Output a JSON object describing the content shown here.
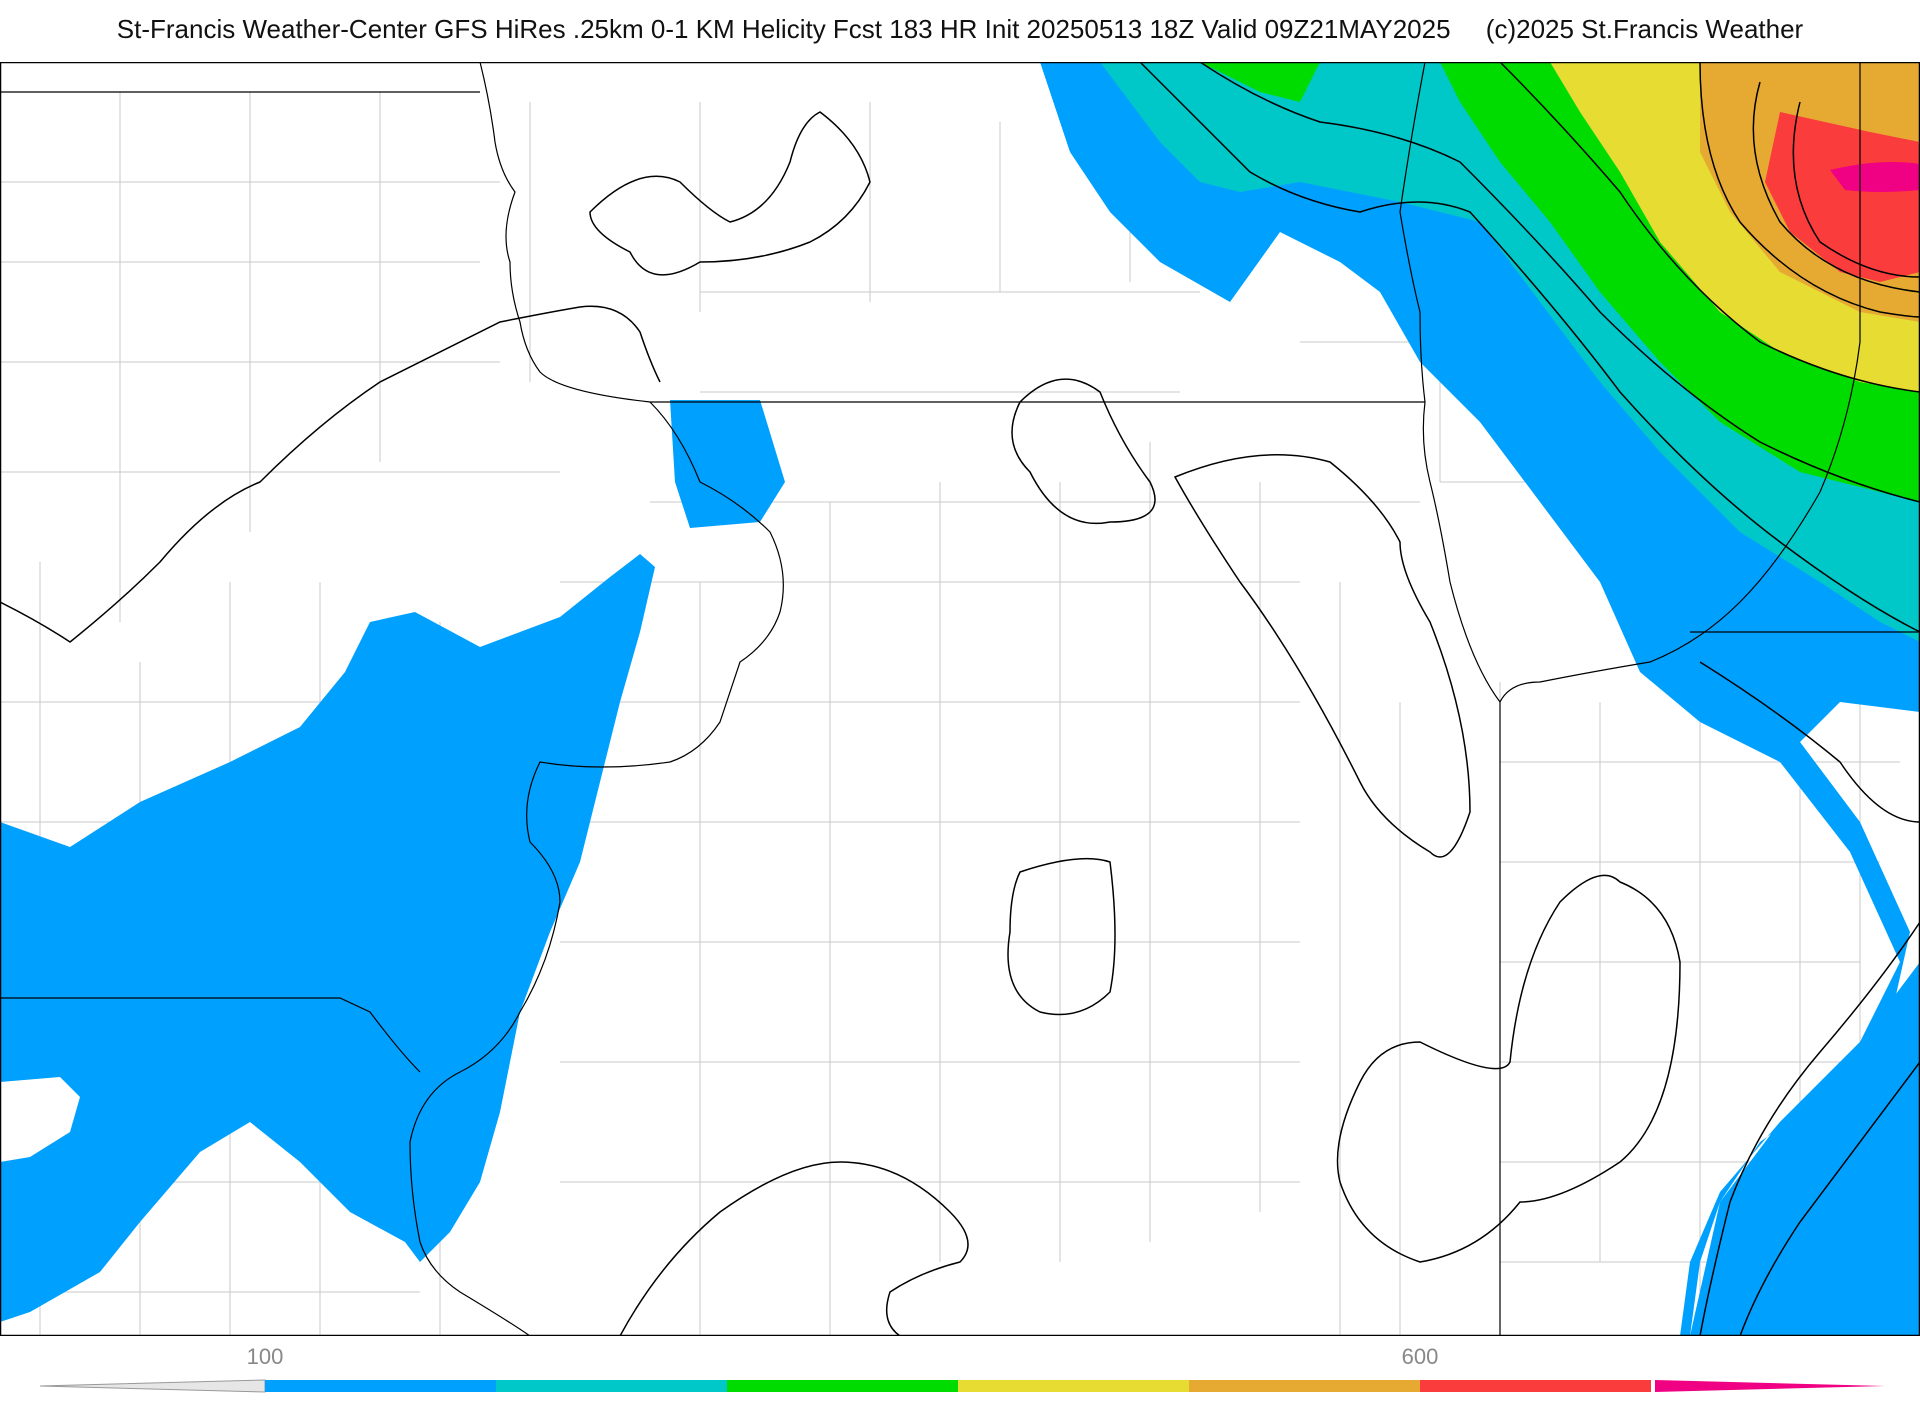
{
  "header": {
    "title": "St-Francis Weather-Center GFS HiRes .25km 0-1 KM Helicity Fcst 183 HR Init 20250513 18Z  Valid 09Z21MAY2025",
    "copyright": "(c)2025 St.Francis Weather"
  },
  "colorbar": {
    "colors": [
      "#00a0ff",
      "#00c8c8",
      "#00dc00",
      "#e6dc32",
      "#e6aa32",
      "#fa3c3c",
      "#f00082"
    ],
    "tick_labels": [
      "100",
      "600"
    ],
    "tick_values": [
      100,
      600
    ]
  },
  "map": {
    "fill_colors": {
      "level_100": "#00a0ff",
      "level_200": "#00c8c8",
      "level_300": "#00dc00",
      "level_400": "#e6dc32",
      "level_500": "#e6aa32",
      "level_600": "#fa3c3c",
      "level_700": "#f00082"
    },
    "boundary_color": "#000000",
    "county_color": "#c8c8c8"
  }
}
